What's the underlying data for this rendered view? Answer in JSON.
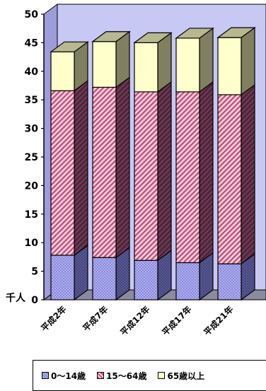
{
  "chart_data": {
    "type": "bar",
    "stacked": true,
    "three_d": true,
    "unit_label": "千人",
    "categories": [
      "平成2年",
      "平成7年",
      "平成12年",
      "平成17年",
      "平成21年"
    ],
    "series": [
      {
        "name": "0～14歳",
        "values": [
          7.8,
          7.4,
          6.9,
          6.5,
          6.3
        ],
        "color": "#b7b7ee",
        "pattern": "cross"
      },
      {
        "name": "15～64歳",
        "values": [
          28.8,
          29.8,
          29.5,
          29.9,
          29.6
        ],
        "color": "#c24a78",
        "pattern": "diagonal"
      },
      {
        "name": "65歳以上",
        "values": [
          6.8,
          8.0,
          8.6,
          9.4,
          10.0
        ],
        "color": "#ffffcc",
        "pattern": "none"
      }
    ],
    "ylim": [
      0,
      50
    ],
    "yticks": [
      0,
      5,
      10,
      15,
      20,
      25,
      30,
      35,
      40,
      45,
      50
    ],
    "grid": false,
    "legend_position": "bottom"
  }
}
